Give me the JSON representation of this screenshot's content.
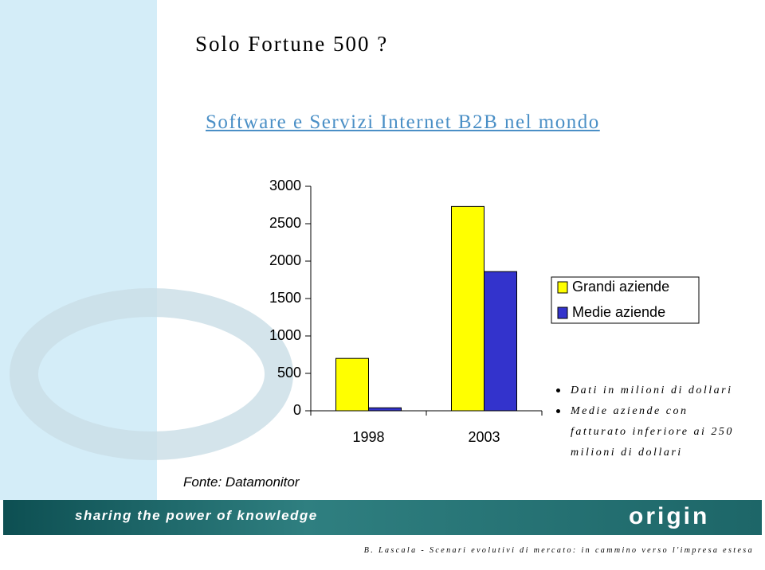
{
  "header": {
    "title": "Solo Fortune 500 ?",
    "subtitle": "Software e Servizi Internet B2B nel mondo"
  },
  "chart_data": {
    "type": "bar",
    "categories": [
      "1998",
      "2003"
    ],
    "series": [
      {
        "name": "Grandi aziende",
        "color": "#ffff00",
        "values": [
          700,
          2730
        ]
      },
      {
        "name": "Medie aziende",
        "color": "#3333cc",
        "values": [
          40,
          1860
        ]
      }
    ],
    "ylim": [
      0,
      3000
    ],
    "yticks": [
      0,
      500,
      1000,
      1500,
      2000,
      2500,
      3000
    ],
    "grid": false,
    "legend": "right"
  },
  "notes": [
    "Dati in milioni di dollari",
    "Medie aziende con fatturato inferiore ai 250 milioni di dollari"
  ],
  "source": "Fonte: Datamonitor",
  "footer": {
    "slogan": "sharing the power of knowledge",
    "logo": "origin",
    "credit": "B. Lascala - Scenari evolutivi di mercato: in cammino verso l'impresa estesa"
  }
}
